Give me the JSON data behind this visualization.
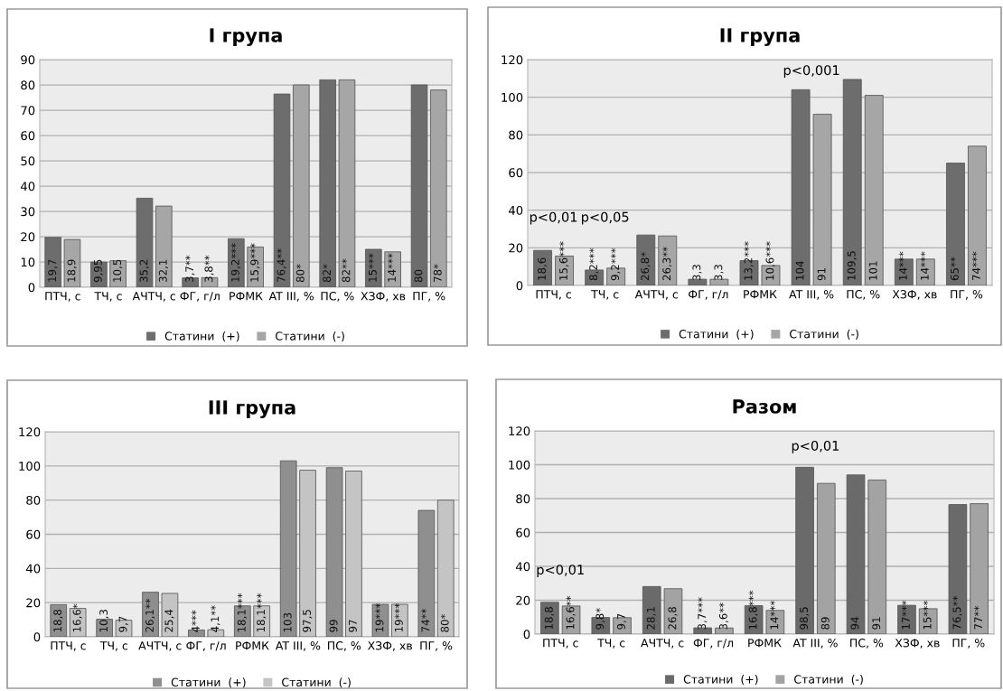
{
  "chart_data": [
    {
      "type": "bar",
      "title": "I група",
      "categories": [
        "ПТЧ, с",
        "ТЧ, с",
        "АЧТЧ, с",
        "ФГ, г/л",
        "РФМК",
        "AT III, %",
        "ПС, %",
        "ХЗФ, хв",
        "ПГ, %"
      ],
      "series": [
        {
          "name": "Статини  (+)",
          "color": "#6d6d6d",
          "values": [
            19.7,
            9.95,
            35.2,
            3.7,
            19.2,
            76.4,
            82,
            15,
            80
          ],
          "value_labels": [
            "19,7",
            "9,95",
            "35,2",
            "3,7**",
            "19,2***",
            "76,4**",
            "82*",
            "15***",
            "80"
          ]
        },
        {
          "name": "Статини  (-)",
          "color": "#a6a6a6",
          "values": [
            18.9,
            10.5,
            32.1,
            3.8,
            15.9,
            80,
            82,
            14,
            78
          ],
          "value_labels": [
            "18,9",
            "10,5",
            "32,1",
            "3,8**",
            "15,9***",
            "80*",
            "82**",
            "14***",
            "78*"
          ]
        }
      ],
      "ylim": [
        0,
        90
      ],
      "yticks": [
        0,
        10,
        20,
        30,
        40,
        50,
        60,
        70,
        80,
        90
      ],
      "grid": "y",
      "legend": "bottom"
    },
    {
      "type": "bar",
      "title": "II група",
      "categories": [
        "ПТЧ, с",
        "ТЧ, с",
        "АЧТЧ, с",
        "ФГ, г/л",
        "РФМК",
        "AT III, %",
        "ПС, %",
        "ХЗФ, хв",
        "ПГ, %"
      ],
      "series": [
        {
          "name": "Статини  (+)",
          "color": "#6d6d6d",
          "values": [
            18.6,
            8.2,
            26.8,
            3.3,
            13.2,
            104,
            109.5,
            14,
            65
          ],
          "value_labels": [
            "18,6",
            "8,2***",
            "26,8*",
            "3,3",
            "13,2***",
            "104",
            "109,5",
            "14***",
            "65**"
          ]
        },
        {
          "name": "Статини  (-)",
          "color": "#a6a6a6",
          "values": [
            15.6,
            9.2,
            26.3,
            3.3,
            10.6,
            91,
            101,
            14,
            74
          ],
          "value_labels": [
            "15,6***",
            "9,2***",
            "26,3**",
            "3,3",
            "10,6***",
            "91",
            "101",
            "14***",
            "74***"
          ]
        }
      ],
      "ylim": [
        0,
        120
      ],
      "yticks": [
        0,
        20,
        40,
        60,
        80,
        100,
        120
      ],
      "grid": "y",
      "legend": "bottom",
      "annotations": [
        "p<0,01",
        "p<0,05",
        "p<0,001"
      ]
    },
    {
      "type": "bar",
      "title": "III група",
      "categories": [
        "ПТЧ, с",
        "ТЧ, с",
        "АЧТЧ, с",
        "ФГ, г/л",
        "РФМК",
        "AT III, %",
        "ПС, %",
        "ХЗФ, хв",
        "ПГ, %"
      ],
      "series": [
        {
          "name": "Статини  (+)",
          "color": "#8f8f8f",
          "values": [
            18.8,
            10.3,
            26.1,
            4,
            18.1,
            103,
            99,
            19,
            74
          ],
          "value_labels": [
            "18,8",
            "10,3",
            "26,1**",
            "4***",
            "18,1***",
            "103",
            "99",
            "19***",
            "74**"
          ]
        },
        {
          "name": "Статини  (-)",
          "color": "#c4c4c4",
          "values": [
            16.6,
            9.7,
            25.4,
            4.1,
            18.1,
            97.5,
            97,
            19,
            80
          ],
          "value_labels": [
            "16,6*",
            "9,7",
            "25,4",
            "4,1**",
            "18,1***",
            "97,5",
            "97",
            "19***",
            "80*"
          ]
        }
      ],
      "ylim": [
        0,
        120
      ],
      "yticks": [
        0,
        20,
        40,
        60,
        80,
        100,
        120
      ],
      "grid": "y",
      "legend": "bottom"
    },
    {
      "type": "bar",
      "title": "Разом",
      "categories": [
        "ПТЧ, с",
        "ТЧ, с",
        "АЧТЧ, с",
        "ФГ, г/л",
        "РФМК",
        "AT III, %",
        "ПС, %",
        "ХЗФ, хв",
        "ПГ, %"
      ],
      "series": [
        {
          "name": "Статини  (+)",
          "color": "#6a6a6a",
          "values": [
            18.8,
            9.8,
            28.1,
            3.7,
            16.8,
            98.5,
            94,
            17,
            76.5
          ],
          "value_labels": [
            "18,8",
            "9,8*",
            "28,1",
            "3,7***",
            "16,8***",
            "98,5",
            "94",
            "17***",
            "76,5**"
          ]
        },
        {
          "name": "Статини  (-)",
          "color": "#a3a3a3",
          "values": [
            16.6,
            9.7,
            26.8,
            3.6,
            14,
            89,
            91,
            15,
            77
          ],
          "value_labels": [
            "16,6**",
            "9,7",
            "26,8",
            "3,6**",
            "14***",
            "89",
            "91",
            "15***",
            "77**"
          ]
        }
      ],
      "ylim": [
        0,
        120
      ],
      "yticks": [
        0,
        20,
        40,
        60,
        80,
        100,
        120
      ],
      "grid": "y",
      "legend": "bottom",
      "annotations": [
        "p<0,01",
        "p<0,01"
      ]
    }
  ]
}
